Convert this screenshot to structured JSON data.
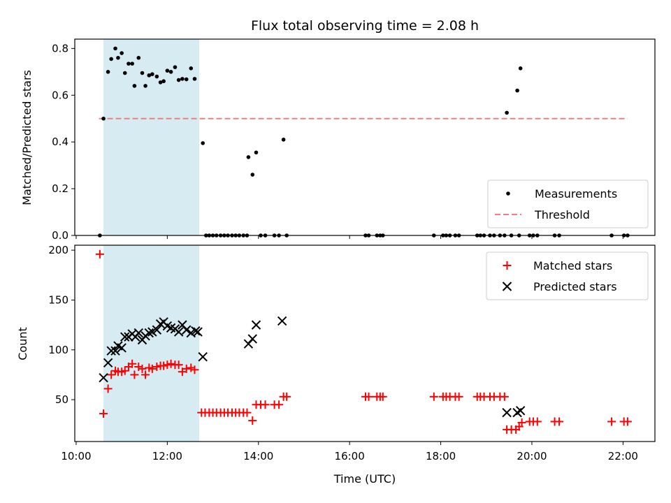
{
  "chart_data": {
    "title": "Flux total observing time = 2.08 h",
    "colors": {
      "match_ratio": "#000000",
      "threshold": "#f08080",
      "matched": "#ff0000",
      "predicted": "#000000",
      "shade": "#add8e6"
    },
    "x_ticks": [
      "10:00",
      "12:00",
      "14:00",
      "16:00",
      "18:00",
      "20:00",
      "22:00"
    ],
    "x_tick_values": [
      10,
      12,
      14,
      16,
      18,
      20,
      22
    ],
    "xlim": [
      9.97,
      22.7
    ],
    "xlabel": "Time (UTC)",
    "shaded_interval": [
      10.6,
      12.7
    ],
    "panels": [
      {
        "type": "scatter",
        "ylabel": "Matched/Predicted stars",
        "ylim": [
          0,
          0.84
        ],
        "y_ticks": [
          "0.0",
          "0.2",
          "0.4",
          "0.6",
          "0.8"
        ],
        "y_tick_values": [
          0,
          0.2,
          0.4,
          0.6,
          0.8
        ],
        "legend": {
          "position": "lower right",
          "entries": [
            "Measurements",
            "Threshold"
          ]
        },
        "threshold": {
          "name": "Threshold",
          "value": 0.5,
          "x_range": [
            10.5,
            22.1
          ]
        },
        "series": [
          {
            "name": "Measurements",
            "marker": "dot",
            "points": [
              [
                10.52,
                0.0
              ],
              [
                10.6,
                0.5
              ],
              [
                10.7,
                0.7
              ],
              [
                10.77,
                0.755
              ],
              [
                10.86,
                0.8
              ],
              [
                10.92,
                0.76
              ],
              [
                11.0,
                0.78
              ],
              [
                11.07,
                0.695
              ],
              [
                11.15,
                0.735
              ],
              [
                11.23,
                0.735
              ],
              [
                11.28,
                0.64
              ],
              [
                11.37,
                0.76
              ],
              [
                11.45,
                0.695
              ],
              [
                11.52,
                0.64
              ],
              [
                11.6,
                0.685
              ],
              [
                11.67,
                0.69
              ],
              [
                11.77,
                0.68
              ],
              [
                11.85,
                0.655
              ],
              [
                11.92,
                0.66
              ],
              [
                12.0,
                0.705
              ],
              [
                12.08,
                0.7
              ],
              [
                12.17,
                0.72
              ],
              [
                12.25,
                0.665
              ],
              [
                12.33,
                0.67
              ],
              [
                12.42,
                0.668
              ],
              [
                12.52,
                0.715
              ],
              [
                12.6,
                0.67
              ],
              [
                12.78,
                0.395
              ],
              [
                12.85,
                0.0
              ],
              [
                12.92,
                0.0
              ],
              [
                13.0,
                0.0
              ],
              [
                13.08,
                0.0
              ],
              [
                13.17,
                0.0
              ],
              [
                13.25,
                0.0
              ],
              [
                13.33,
                0.0
              ],
              [
                13.42,
                0.0
              ],
              [
                13.5,
                0.0
              ],
              [
                13.58,
                0.0
              ],
              [
                13.67,
                0.0
              ],
              [
                13.75,
                0.0
              ],
              [
                13.78,
                0.335
              ],
              [
                13.87,
                0.26
              ],
              [
                13.95,
                0.355
              ],
              [
                14.05,
                0.0
              ],
              [
                14.15,
                0.0
              ],
              [
                14.35,
                0.0
              ],
              [
                14.45,
                0.0
              ],
              [
                14.55,
                0.41
              ],
              [
                14.62,
                0.0
              ],
              [
                16.35,
                0.0
              ],
              [
                16.42,
                0.0
              ],
              [
                16.6,
                0.0
              ],
              [
                16.67,
                0.0
              ],
              [
                16.73,
                0.0
              ],
              [
                17.85,
                0.0
              ],
              [
                18.05,
                0.0
              ],
              [
                18.12,
                0.0
              ],
              [
                18.2,
                0.0
              ],
              [
                18.32,
                0.0
              ],
              [
                18.4,
                0.0
              ],
              [
                18.8,
                0.0
              ],
              [
                18.87,
                0.0
              ],
              [
                18.95,
                0.0
              ],
              [
                19.08,
                0.0
              ],
              [
                19.17,
                0.0
              ],
              [
                19.3,
                0.0
              ],
              [
                19.4,
                0.0
              ],
              [
                19.45,
                0.525
              ],
              [
                19.55,
                0.0
              ],
              [
                19.72,
                0.0
              ],
              [
                19.68,
                0.62
              ],
              [
                19.75,
                0.715
              ],
              [
                19.95,
                0.0
              ],
              [
                20.03,
                0.0
              ],
              [
                20.12,
                0.0
              ],
              [
                20.5,
                0.0
              ],
              [
                20.6,
                0.0
              ],
              [
                21.75,
                0.0
              ],
              [
                22.02,
                0.0
              ],
              [
                22.1,
                0.0
              ]
            ]
          }
        ]
      },
      {
        "type": "scatter",
        "ylabel": "Count",
        "ylim": [
          8,
          205
        ],
        "y_ticks": [
          "50",
          "100",
          "150",
          "200"
        ],
        "y_tick_values": [
          50,
          100,
          150,
          200
        ],
        "legend": {
          "position": "upper right",
          "entries": [
            "Matched stars",
            "Predicted stars"
          ]
        },
        "series": [
          {
            "name": "Matched stars",
            "marker": "plus",
            "points": [
              [
                10.52,
                196
              ],
              [
                10.6,
                36
              ],
              [
                10.7,
                61
              ],
              [
                10.77,
                75
              ],
              [
                10.86,
                79
              ],
              [
                10.92,
                78
              ],
              [
                11.0,
                78
              ],
              [
                11.07,
                79
              ],
              [
                11.15,
                83
              ],
              [
                11.23,
                86
              ],
              [
                11.28,
                75
              ],
              [
                11.37,
                83
              ],
              [
                11.45,
                81
              ],
              [
                11.52,
                75
              ],
              [
                11.6,
                82
              ],
              [
                11.67,
                81
              ],
              [
                11.77,
                83
              ],
              [
                11.85,
                84
              ],
              [
                11.92,
                84
              ],
              [
                12.0,
                85
              ],
              [
                12.08,
                86
              ],
              [
                12.17,
                85
              ],
              [
                12.25,
                85
              ],
              [
                12.33,
                78
              ],
              [
                12.42,
                81
              ],
              [
                12.52,
                82
              ],
              [
                12.6,
                80
              ],
              [
                12.75,
                37
              ],
              [
                12.83,
                37
              ],
              [
                12.92,
                37
              ],
              [
                13.0,
                37
              ],
              [
                13.08,
                37
              ],
              [
                13.17,
                37
              ],
              [
                13.25,
                37
              ],
              [
                13.33,
                37
              ],
              [
                13.42,
                37
              ],
              [
                13.5,
                37
              ],
              [
                13.58,
                37
              ],
              [
                13.67,
                37
              ],
              [
                13.75,
                37
              ],
              [
                13.87,
                29
              ],
              [
                13.95,
                45
              ],
              [
                14.05,
                45
              ],
              [
                14.15,
                45
              ],
              [
                14.35,
                45
              ],
              [
                14.45,
                45
              ],
              [
                14.55,
                53
              ],
              [
                14.62,
                53
              ],
              [
                16.35,
                53
              ],
              [
                16.42,
                53
              ],
              [
                16.6,
                53
              ],
              [
                16.67,
                53
              ],
              [
                16.73,
                53
              ],
              [
                17.85,
                53
              ],
              [
                18.05,
                53
              ],
              [
                18.12,
                53
              ],
              [
                18.2,
                53
              ],
              [
                18.32,
                53
              ],
              [
                18.4,
                53
              ],
              [
                18.8,
                53
              ],
              [
                18.87,
                53
              ],
              [
                18.95,
                53
              ],
              [
                19.08,
                53
              ],
              [
                19.17,
                53
              ],
              [
                19.3,
                53
              ],
              [
                19.4,
                53
              ],
              [
                19.45,
                20
              ],
              [
                19.55,
                20
              ],
              [
                19.65,
                20
              ],
              [
                19.72,
                23
              ],
              [
                19.78,
                27
              ],
              [
                19.95,
                28
              ],
              [
                20.03,
                28
              ],
              [
                20.12,
                28
              ],
              [
                20.5,
                28
              ],
              [
                20.6,
                28
              ],
              [
                21.75,
                28
              ],
              [
                22.02,
                28
              ],
              [
                22.1,
                28
              ]
            ]
          },
          {
            "name": "Predicted stars",
            "marker": "x",
            "points": [
              [
                10.6,
                72
              ],
              [
                10.7,
                87
              ],
              [
                10.77,
                99
              ],
              [
                10.86,
                99
              ],
              [
                10.92,
                104
              ],
              [
                11.0,
                102
              ],
              [
                11.07,
                113
              ],
              [
                11.15,
                113
              ],
              [
                11.23,
                116
              ],
              [
                11.3,
                113
              ],
              [
                11.37,
                117
              ],
              [
                11.45,
                110
              ],
              [
                11.52,
                114
              ],
              [
                11.6,
                117
              ],
              [
                11.67,
                118
              ],
              [
                11.77,
                120
              ],
              [
                11.85,
                126
              ],
              [
                11.92,
                128
              ],
              [
                12.0,
                124
              ],
              [
                12.08,
                122
              ],
              [
                12.17,
                121
              ],
              [
                12.25,
                118
              ],
              [
                12.33,
                125
              ],
              [
                12.42,
                120
              ],
              [
                12.52,
                117
              ],
              [
                12.62,
                119
              ],
              [
                12.67,
                118
              ],
              [
                12.78,
                93
              ],
              [
                13.78,
                106
              ],
              [
                13.87,
                111
              ],
              [
                13.95,
                125
              ],
              [
                14.52,
                129
              ],
              [
                19.45,
                37
              ],
              [
                19.68,
                37
              ],
              [
                19.75,
                39
              ]
            ]
          }
        ]
      }
    ]
  }
}
